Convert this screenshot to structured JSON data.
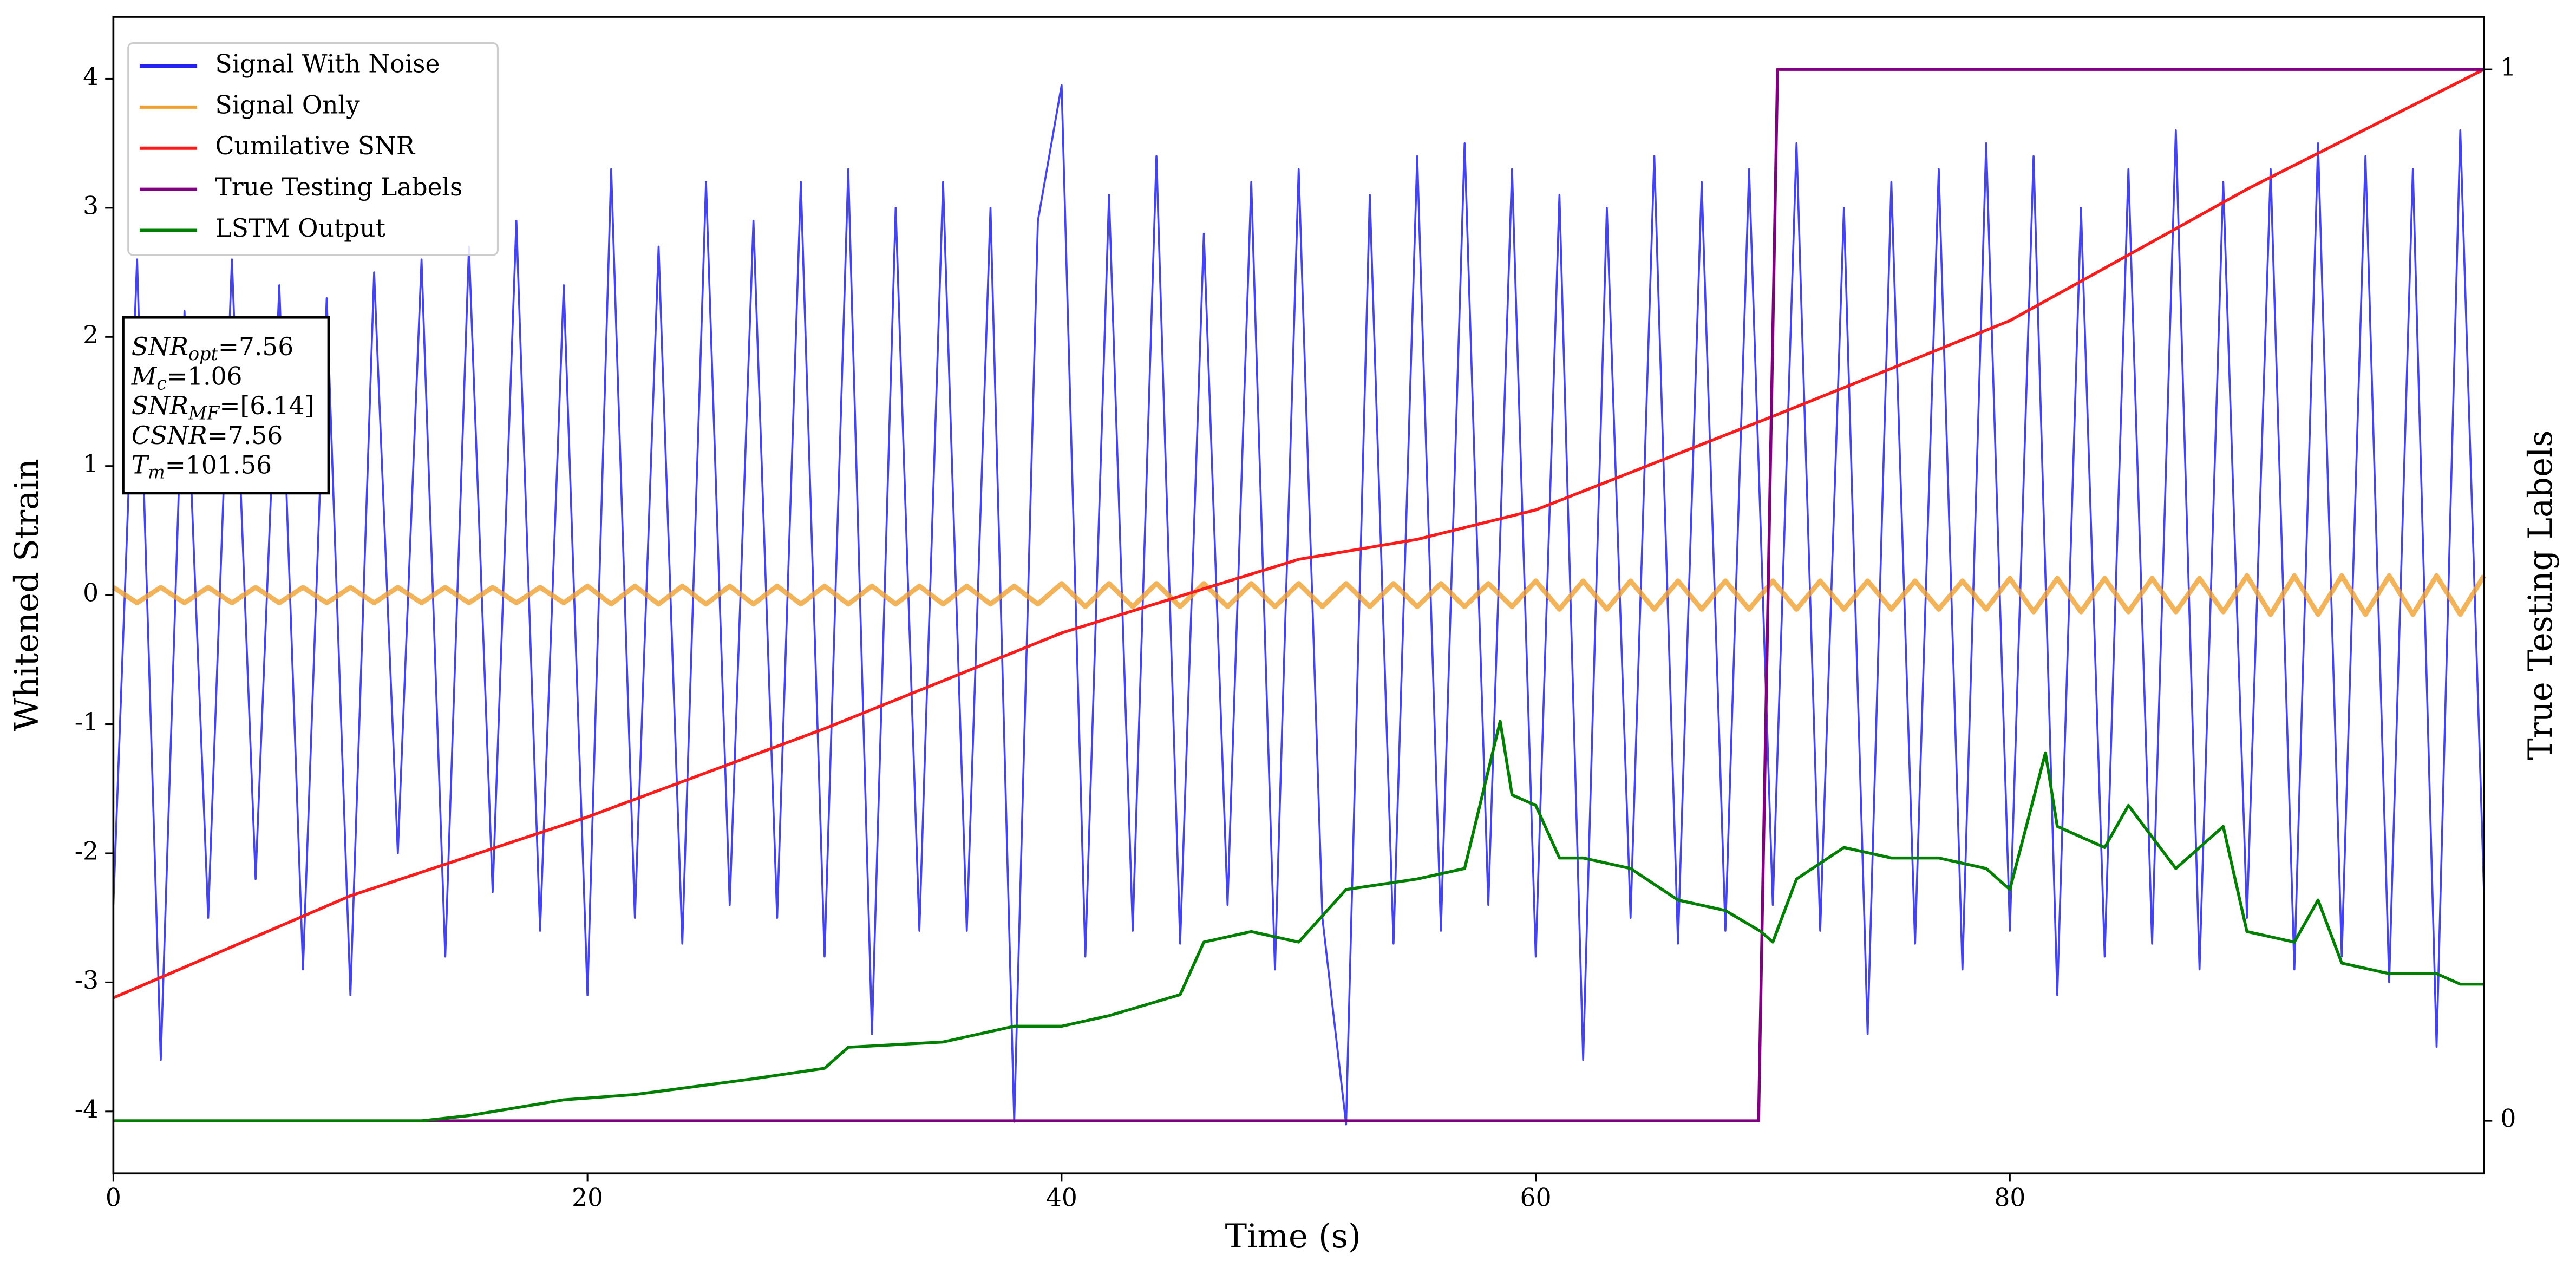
{
  "chart_data": {
    "type": "line",
    "xlabel": "Time (s)",
    "ylabel": "Whitened Strain",
    "y2label": "True Testing Labels",
    "xlim": [
      0,
      100
    ],
    "xticks": [
      0,
      20,
      40,
      60,
      80
    ],
    "ylim": [
      -4.48,
      4.48
    ],
    "yticks": [
      -4,
      -3,
      -2,
      -1,
      0,
      1,
      2,
      3,
      4
    ],
    "y2lim": [
      -0.05,
      1.05
    ],
    "y2ticks": [
      0,
      1
    ],
    "legend": "upper left",
    "series": [
      {
        "name": "Signal With Noise",
        "color": "#2222ee",
        "x": [
          0,
          1,
          2,
          3,
          4,
          5,
          6,
          7,
          8,
          9,
          10,
          11,
          12,
          13,
          14,
          15,
          16,
          17,
          18,
          19,
          20,
          21,
          22,
          23,
          24,
          25,
          26,
          27,
          28,
          29,
          30,
          31,
          32,
          33,
          34,
          35,
          36,
          37,
          38,
          39,
          40,
          41,
          42,
          43,
          44,
          45,
          46,
          47,
          48,
          49,
          50,
          51,
          52,
          53,
          54,
          55,
          56,
          57,
          58,
          59,
          60,
          61,
          62,
          63,
          64,
          65,
          66,
          67,
          68,
          69,
          70,
          71,
          72,
          73,
          74,
          75,
          76,
          77,
          78,
          79,
          80,
          81,
          82,
          83,
          84,
          85,
          86,
          87,
          88,
          89,
          90,
          91,
          92,
          93,
          94,
          95,
          96,
          97,
          98,
          99,
          100
        ],
        "values": [
          -2.4,
          2.6,
          -3.6,
          2.2,
          -2.5,
          2.6,
          -2.2,
          2.4,
          -2.9,
          2.3,
          -3.1,
          2.5,
          -2.0,
          2.6,
          -2.8,
          2.7,
          -2.3,
          2.9,
          -2.6,
          2.4,
          -3.1,
          3.3,
          -2.5,
          2.7,
          -2.7,
          3.2,
          -2.4,
          2.9,
          -2.5,
          3.2,
          -2.8,
          3.3,
          -3.4,
          3.0,
          -2.6,
          3.2,
          -2.6,
          3.0,
          -4.08,
          2.9,
          3.95,
          -2.8,
          3.1,
          -2.6,
          3.4,
          -2.7,
          2.8,
          -2.4,
          3.2,
          -2.9,
          3.3,
          -2.5,
          -4.1,
          3.1,
          -2.7,
          3.4,
          -2.6,
          3.5,
          -2.4,
          3.3,
          -2.8,
          3.1,
          -3.6,
          3.0,
          -2.5,
          3.4,
          -2.7,
          3.2,
          -2.6,
          3.3,
          -2.4,
          3.5,
          -2.6,
          3.0,
          -3.4,
          3.2,
          -2.7,
          3.3,
          -2.9,
          3.5,
          -2.6,
          3.4,
          -3.1,
          3.0,
          -2.8,
          3.3,
          -2.7,
          3.6,
          -2.9,
          3.2,
          -2.5,
          3.3,
          -2.9,
          3.5,
          -2.8,
          3.4,
          -3.0,
          3.3,
          -3.5,
          3.6,
          -2.3
        ]
      },
      {
        "name": "Signal Only",
        "color": "#f0a030",
        "x": [
          0,
          1,
          2,
          3,
          4,
          5,
          6,
          7,
          8,
          9,
          10,
          11,
          12,
          13,
          14,
          15,
          16,
          17,
          18,
          19,
          20,
          21,
          22,
          23,
          24,
          25,
          26,
          27,
          28,
          29,
          30,
          31,
          32,
          33,
          34,
          35,
          36,
          37,
          38,
          39,
          40,
          41,
          42,
          43,
          44,
          45,
          46,
          47,
          48,
          49,
          50,
          51,
          52,
          53,
          54,
          55,
          56,
          57,
          58,
          59,
          60,
          61,
          62,
          63,
          64,
          65,
          66,
          67,
          68,
          69,
          70,
          71,
          72,
          73,
          74,
          75,
          76,
          77,
          78,
          79,
          80,
          81,
          82,
          83,
          84,
          85,
          86,
          87,
          88,
          89,
          90,
          91,
          92,
          93,
          94,
          95,
          96,
          97,
          98,
          99,
          100
        ],
        "values": [
          0.06,
          -0.06,
          0.06,
          -0.06,
          0.06,
          -0.06,
          0.06,
          -0.06,
          0.06,
          -0.06,
          0.06,
          -0.06,
          0.06,
          -0.06,
          0.06,
          -0.06,
          0.06,
          -0.06,
          0.06,
          -0.06,
          0.07,
          -0.07,
          0.07,
          -0.07,
          0.07,
          -0.07,
          0.07,
          -0.07,
          0.07,
          -0.07,
          0.07,
          -0.07,
          0.07,
          -0.07,
          0.07,
          -0.07,
          0.07,
          -0.07,
          0.07,
          -0.07,
          0.09,
          -0.09,
          0.09,
          -0.09,
          0.09,
          -0.09,
          0.09,
          -0.09,
          0.09,
          -0.09,
          0.09,
          -0.09,
          0.09,
          -0.09,
          0.09,
          -0.09,
          0.09,
          -0.09,
          0.09,
          -0.09,
          0.11,
          -0.11,
          0.11,
          -0.11,
          0.11,
          -0.11,
          0.11,
          -0.11,
          0.11,
          -0.11,
          0.11,
          -0.11,
          0.11,
          -0.11,
          0.11,
          -0.11,
          0.11,
          -0.11,
          0.11,
          -0.11,
          0.13,
          -0.13,
          0.13,
          -0.13,
          0.13,
          -0.13,
          0.13,
          -0.13,
          0.13,
          -0.13,
          0.15,
          -0.15,
          0.15,
          -0.15,
          0.15,
          -0.15,
          0.15,
          -0.15,
          0.15,
          -0.15,
          0.15
        ]
      },
      {
        "name": "Cumilative SNR",
        "color": "#ff1a1a",
        "axis": "y2",
        "x": [
          0,
          10,
          20,
          30,
          40,
          50,
          55,
          60,
          70,
          80,
          90,
          100
        ],
        "values": [
          0.117,
          0.214,
          0.289,
          0.373,
          0.464,
          0.534,
          0.553,
          0.581,
          0.67,
          0.761,
          0.886,
          1
        ]
      },
      {
        "name": "True Testing Labels",
        "color": "#800080",
        "axis": "y2",
        "x": [
          0,
          69.4,
          70.2,
          100
        ],
        "values": [
          0,
          0,
          1,
          1
        ]
      },
      {
        "name": "LSTM Output",
        "color": "#008000",
        "axis": "y2",
        "x": [
          0,
          13,
          15,
          19,
          22,
          27,
          30,
          31,
          35,
          38,
          40,
          42,
          45,
          46,
          48,
          50,
          52,
          55,
          57,
          58.5,
          59,
          60,
          61,
          62,
          64,
          66,
          68,
          69.5,
          70,
          71,
          73,
          75,
          77,
          79,
          80,
          81.5,
          82,
          84,
          85,
          87,
          89,
          90,
          92,
          93,
          94,
          96,
          98,
          99,
          100
        ],
        "values": [
          0,
          0,
          0.005,
          0.02,
          0.025,
          0.04,
          0.05,
          0.07,
          0.075,
          0.09,
          0.09,
          0.1,
          0.12,
          0.17,
          0.18,
          0.17,
          0.22,
          0.23,
          0.24,
          0.38,
          0.31,
          0.3,
          0.25,
          0.25,
          0.24,
          0.21,
          0.2,
          0.18,
          0.17,
          0.23,
          0.26,
          0.25,
          0.25,
          0.24,
          0.22,
          0.35,
          0.28,
          0.26,
          0.3,
          0.24,
          0.28,
          0.18,
          0.17,
          0.21,
          0.15,
          0.14,
          0.14,
          0.13,
          0.13
        ]
      }
    ],
    "annotation": [
      {
        "symbol": "SNR",
        "sub": "opt",
        "text": "=7.56"
      },
      {
        "symbol": "M",
        "sub": "c",
        "text": "=1.06"
      },
      {
        "symbol": "SNR",
        "sub": "MF",
        "text": "=[6.14]"
      },
      {
        "symbol": "CSNR",
        "text": "=7.56"
      },
      {
        "symbol": "T",
        "sub": "m",
        "text": "=101.56"
      }
    ]
  }
}
